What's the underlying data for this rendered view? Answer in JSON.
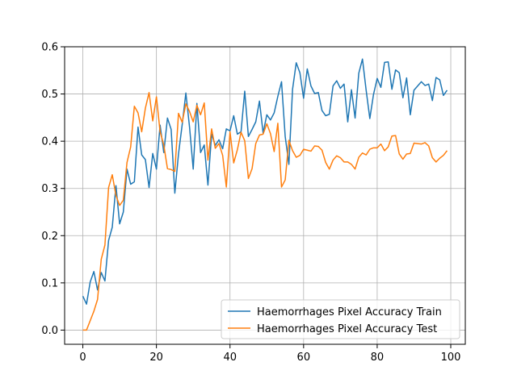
{
  "chart_data": {
    "type": "line",
    "title": "",
    "xlabel": "",
    "ylabel": "",
    "xlim": [
      -4.95,
      103.95
    ],
    "ylim": [
      -0.03,
      0.6
    ],
    "xticks": [
      0,
      20,
      40,
      60,
      80,
      100
    ],
    "yticks": [
      0.0,
      0.1,
      0.2,
      0.3,
      0.4,
      0.5,
      0.6
    ],
    "xtick_labels": [
      "0",
      "20",
      "40",
      "60",
      "80",
      "100"
    ],
    "ytick_labels": [
      "0.0",
      "0.1",
      "0.2",
      "0.3",
      "0.4",
      "0.5",
      "0.6"
    ],
    "grid": true,
    "legend_position": "lower-right",
    "series": [
      {
        "name": "Haemorrhages Pixel Accuracy Train",
        "color": "#1f77b4",
        "values": [
          0.072,
          0.055,
          0.102,
          0.124,
          0.085,
          0.122,
          0.104,
          0.19,
          0.218,
          0.306,
          0.225,
          0.25,
          0.341,
          0.309,
          0.314,
          0.43,
          0.371,
          0.361,
          0.302,
          0.374,
          0.341,
          0.434,
          0.376,
          0.449,
          0.425,
          0.29,
          0.373,
          0.435,
          0.502,
          0.43,
          0.341,
          0.48,
          0.376,
          0.392,
          0.307,
          0.415,
          0.391,
          0.403,
          0.384,
          0.426,
          0.422,
          0.454,
          0.415,
          0.42,
          0.506,
          0.41,
          0.425,
          0.441,
          0.485,
          0.417,
          0.456,
          0.445,
          0.46,
          0.495,
          0.526,
          0.41,
          0.351,
          0.51,
          0.566,
          0.545,
          0.491,
          0.553,
          0.517,
          0.501,
          0.503,
          0.465,
          0.454,
          0.457,
          0.517,
          0.528,
          0.512,
          0.521,
          0.441,
          0.509,
          0.449,
          0.544,
          0.574,
          0.508,
          0.448,
          0.499,
          0.533,
          0.514,
          0.567,
          0.568,
          0.51,
          0.551,
          0.545,
          0.492,
          0.534,
          0.456,
          0.508,
          0.517,
          0.526,
          0.518,
          0.521,
          0.486,
          0.535,
          0.53,
          0.497,
          0.508
        ]
      },
      {
        "name": "Haemorrhages Pixel Accuracy Test",
        "color": "#ff7f0e",
        "values": [
          0.0,
          0.0,
          0.02,
          0.04,
          0.065,
          0.15,
          0.18,
          0.302,
          0.329,
          0.285,
          0.264,
          0.275,
          0.355,
          0.388,
          0.474,
          0.46,
          0.42,
          0.47,
          0.503,
          0.443,
          0.494,
          0.42,
          0.392,
          0.342,
          0.34,
          0.336,
          0.459,
          0.44,
          0.479,
          0.463,
          0.441,
          0.476,
          0.456,
          0.481,
          0.36,
          0.426,
          0.385,
          0.395,
          0.37,
          0.303,
          0.42,
          0.354,
          0.382,
          0.419,
          0.401,
          0.321,
          0.342,
          0.395,
          0.413,
          0.415,
          0.437,
          0.416,
          0.378,
          0.438,
          0.303,
          0.318,
          0.402,
          0.38,
          0.366,
          0.37,
          0.383,
          0.381,
          0.379,
          0.39,
          0.389,
          0.381,
          0.355,
          0.341,
          0.36,
          0.369,
          0.365,
          0.356,
          0.356,
          0.351,
          0.341,
          0.366,
          0.375,
          0.371,
          0.383,
          0.386,
          0.386,
          0.394,
          0.38,
          0.388,
          0.411,
          0.412,
          0.373,
          0.362,
          0.373,
          0.374,
          0.396,
          0.395,
          0.394,
          0.397,
          0.39,
          0.365,
          0.356,
          0.364,
          0.37,
          0.38
        ]
      }
    ]
  }
}
